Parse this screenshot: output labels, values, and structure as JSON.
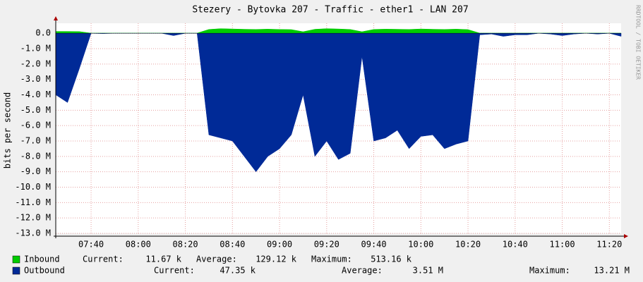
{
  "chart_data": {
    "type": "area",
    "title": "Stezery - Bytovka 207 - Traffic - ether1 - LAN 207",
    "y_label": "bits per second",
    "watermark": "RRDTOOL / TOBI OETIKER",
    "x": [
      "07:25",
      "07:30",
      "07:35",
      "07:40",
      "07:45",
      "07:50",
      "07:55",
      "08:00",
      "08:05",
      "08:10",
      "08:15",
      "08:20",
      "08:25",
      "08:30",
      "08:35",
      "08:40",
      "08:45",
      "08:50",
      "08:55",
      "09:00",
      "09:05",
      "09:10",
      "09:15",
      "09:20",
      "09:25",
      "09:30",
      "09:35",
      "09:40",
      "09:45",
      "09:50",
      "09:55",
      "10:00",
      "10:05",
      "10:10",
      "10:15",
      "10:20",
      "10:25",
      "10:30",
      "10:35",
      "10:40",
      "10:45",
      "10:50",
      "10:55",
      "11:00",
      "11:05",
      "11:10",
      "11:15",
      "11:20",
      "11:25"
    ],
    "xlim": [
      "07:25",
      "11:25"
    ],
    "xticks": [
      "07:40",
      "08:00",
      "08:20",
      "08:40",
      "09:00",
      "09:20",
      "09:40",
      "10:00",
      "10:20",
      "10:40",
      "11:00",
      "11:20"
    ],
    "ylim": [
      -13000000,
      650000
    ],
    "yticks": [
      {
        "value": 0,
        "label": "0.0"
      },
      {
        "value": -1000000,
        "label": "-1.0 M"
      },
      {
        "value": -2000000,
        "label": "-2.0 M"
      },
      {
        "value": -3000000,
        "label": "-3.0 M"
      },
      {
        "value": -4000000,
        "label": "-4.0 M"
      },
      {
        "value": -5000000,
        "label": "-5.0 M"
      },
      {
        "value": -6000000,
        "label": "-6.0 M"
      },
      {
        "value": -7000000,
        "label": "-7.0 M"
      },
      {
        "value": -8000000,
        "label": "-8.0 M"
      },
      {
        "value": -9000000,
        "label": "-9.0 M"
      },
      {
        "value": -10000000,
        "label": "-10.0 M"
      },
      {
        "value": -11000000,
        "label": "-11.0 M"
      },
      {
        "value": -12000000,
        "label": "-12.0 M"
      },
      {
        "value": -13000000,
        "label": "-13.0 M"
      }
    ],
    "grid": true,
    "series": [
      {
        "name": "Inbound",
        "color": "#00cc00",
        "values": [
          120000,
          120000,
          110000,
          10000,
          10000,
          10000,
          10000,
          10000,
          10000,
          10000,
          10000,
          10000,
          10000,
          250000,
          300000,
          280000,
          260000,
          250000,
          270000,
          250000,
          240000,
          100000,
          260000,
          300000,
          280000,
          250000,
          100000,
          250000,
          270000,
          260000,
          250000,
          280000,
          260000,
          250000,
          270000,
          240000,
          10000,
          10000,
          10000,
          10000,
          10000,
          10000,
          10000,
          10000,
          10000,
          10000,
          10000,
          10000,
          10000
        ],
        "stats": [
          {
            "name": "Current:",
            "value": 11670,
            "label": "11.67 k"
          },
          {
            "name": "Average:",
            "value": 129120,
            "label": "129.12 k"
          },
          {
            "name": "Maximum:",
            "value": 513160,
            "label": "513.16 k"
          }
        ]
      },
      {
        "name": "Outbound",
        "color": "#002a97",
        "values": [
          -4000000,
          -4500000,
          -2300000,
          0,
          -20000,
          0,
          0,
          0,
          0,
          0,
          -150000,
          0,
          0,
          -6600000,
          -6800000,
          -7000000,
          -8000000,
          -9000000,
          -8000000,
          -7500000,
          -6600000,
          -4000000,
          -8000000,
          -7000000,
          -8200000,
          -7800000,
          -1500000,
          -7000000,
          -6800000,
          -6300000,
          -7500000,
          -6700000,
          -6600000,
          -7500000,
          -7200000,
          -7000000,
          -100000,
          -50000,
          -200000,
          -100000,
          -100000,
          0,
          -50000,
          -150000,
          -50000,
          0,
          -50000,
          0,
          -200000
        ],
        "stats": [
          {
            "name": "Current:",
            "value": 47350,
            "label": "47.35 k"
          },
          {
            "name": "Average:",
            "value": 3510000,
            "label": "3.51 M"
          },
          {
            "name": "Maximum:",
            "value": 13210000,
            "label": "13.21 M"
          }
        ]
      }
    ]
  }
}
